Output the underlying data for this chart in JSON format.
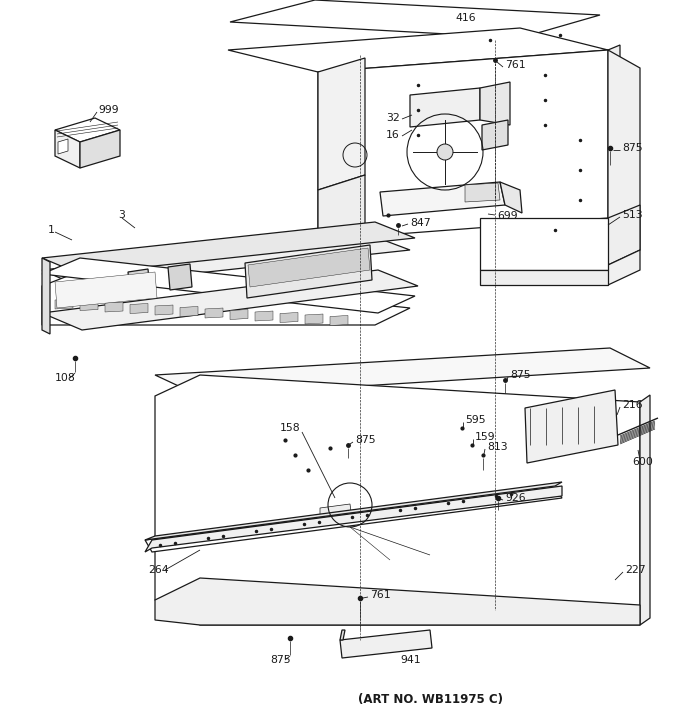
{
  "background": "#ffffff",
  "lc": "#1a1a1a",
  "art_no": "(ART NO. WB11975 C)",
  "figsize": [
    6.8,
    7.25
  ],
  "dpi": 100,
  "lw": 0.9,
  "label_fs": 7.8
}
